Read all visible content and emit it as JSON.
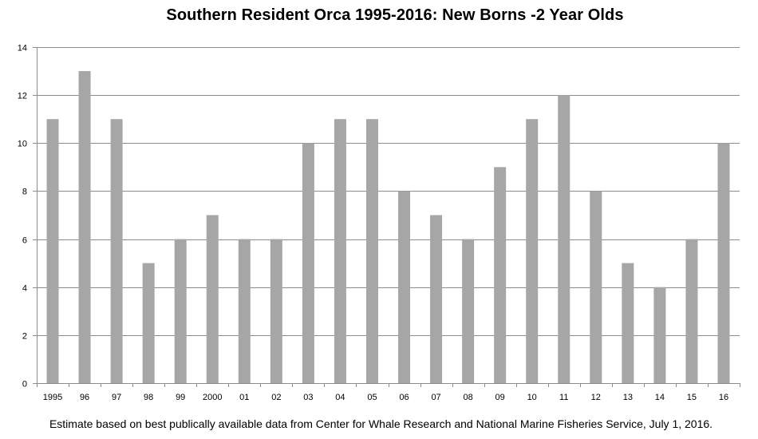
{
  "chart_data": {
    "type": "bar",
    "title": "Southern Resident Orca 1995-2016:  New Borns -2 Year Olds",
    "footnote": "Estimate based on best publically available data from Center for Whale Research and National Marine Fisheries Service, July 1, 2016.",
    "categories": [
      "1995",
      "96",
      "97",
      "98",
      "99",
      "2000",
      "01",
      "02",
      "03",
      "04",
      "05",
      "06",
      "07",
      "08",
      "09",
      "10",
      "11",
      "12",
      "13",
      "14",
      "15",
      "16"
    ],
    "values": [
      11,
      13,
      11,
      5,
      6,
      7,
      6,
      6,
      10,
      11,
      11,
      8,
      7,
      6,
      9,
      11,
      12,
      8,
      5,
      4,
      6,
      10
    ],
    "xlabel": "",
    "ylabel": "",
    "ylim": [
      0,
      14
    ],
    "yticks": [
      0,
      2,
      4,
      6,
      8,
      10,
      12,
      14
    ],
    "grid": true,
    "legend": "none",
    "colors": {
      "bar": "#a6a6a6",
      "grid": "#8c8c8c",
      "axis": "#8c8c8c"
    }
  }
}
